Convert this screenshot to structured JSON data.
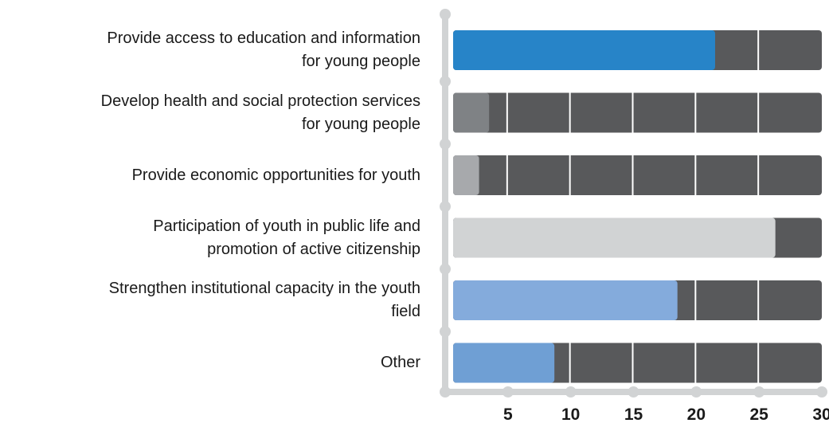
{
  "chart_data": {
    "type": "bar",
    "orientation": "horizontal",
    "title": "",
    "xlabel": "",
    "ylabel": "",
    "categories": [
      [
        "Provide access to education and information",
        "for young people"
      ],
      [
        "Develop health and social protection services",
        "for young people"
      ],
      [
        "Provide economic opportunities for youth"
      ],
      [
        "Participation of youth in public life and",
        "promotion of active citizenship"
      ],
      [
        "Strengthen institutional capacity in the youth",
        "field"
      ],
      [
        "Other"
      ]
    ],
    "values": [
      21.5,
      3.5,
      2.7,
      26.3,
      18.5,
      8.7
    ],
    "bar_colors": [
      "#2784c8",
      "#7f8285",
      "#a7a9ac",
      "#d1d3d4",
      "#84abdc",
      "#6f9fd4"
    ],
    "track_color": "#58595b",
    "axis_color": "#d1d3d4",
    "xlim": [
      0,
      30
    ],
    "xticks": [
      5,
      10,
      15,
      20,
      25,
      30
    ],
    "xtick_labels": [
      "5",
      "10",
      "15",
      "20",
      "25",
      "30"
    ],
    "grid": true
  }
}
